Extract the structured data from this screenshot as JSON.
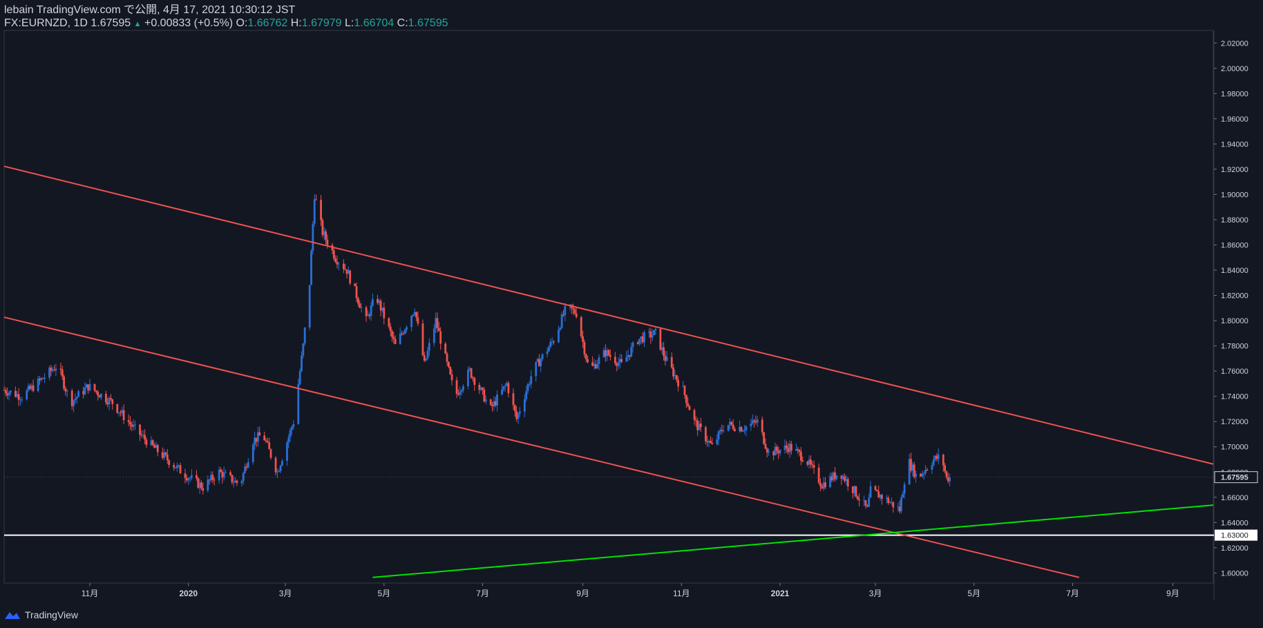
{
  "header": {
    "publish_line": "lebain TradingView.com で公開, 4月 17, 2021 10:30:12 JST",
    "symbol": "FX:EURNZD, 1D 1.67595",
    "change_arrow": "▲",
    "change": "+0.00833 (+0.5%)",
    "o_label": "O:",
    "o_value": "1.66762",
    "h_label": "H:",
    "h_value": "1.67979",
    "l_label": "L:",
    "l_value": "1.66704",
    "c_label": "C:",
    "c_value": "1.67595"
  },
  "footer": {
    "brand": "TradingView"
  },
  "colors": {
    "background": "#131722",
    "up": "#2a6fd6",
    "down": "#ef5350",
    "channel": "#ef5350",
    "support_line": "#00e600",
    "level_line": "#ffffff",
    "text_teal": "#26a69a"
  },
  "chart_data": {
    "type": "candlestick",
    "symbol": "FX:EURNZD",
    "timeframe": "1D",
    "ylim": [
      1.592,
      2.03
    ],
    "y_ticks": [
      1.6,
      1.62,
      1.64,
      1.66,
      1.68,
      1.7,
      1.72,
      1.74,
      1.76,
      1.78,
      1.8,
      1.82,
      1.84,
      1.86,
      1.88,
      1.9,
      1.92,
      1.94,
      1.96,
      1.98,
      2.0,
      2.02
    ],
    "y_tick_labels": [
      "1.60000",
      "1.62000",
      "1.64000",
      "1.66000",
      "1.68000",
      "1.70000",
      "1.72000",
      "1.74000",
      "1.76000",
      "1.78000",
      "1.80000",
      "1.82000",
      "1.84000",
      "1.86000",
      "1.88000",
      "1.90000",
      "1.92000",
      "1.94000",
      "1.96000",
      "1.98000",
      "2.00000",
      "2.02000"
    ],
    "x_range": [
      "2019-09-09",
      "2021-09-26"
    ],
    "x_ticks": [
      {
        "date": "2019-11-01",
        "label": "11月"
      },
      {
        "date": "2020-01-01",
        "label": "2020"
      },
      {
        "date": "2020-03-01",
        "label": "3月"
      },
      {
        "date": "2020-05-01",
        "label": "5月"
      },
      {
        "date": "2020-07-01",
        "label": "7月"
      },
      {
        "date": "2020-09-01",
        "label": "9月"
      },
      {
        "date": "2020-11-01",
        "label": "11月"
      },
      {
        "date": "2021-01-01",
        "label": "2021"
      },
      {
        "date": "2021-03-01",
        "label": "3月"
      },
      {
        "date": "2021-05-01",
        "label": "5月"
      },
      {
        "date": "2021-07-01",
        "label": "7月"
      },
      {
        "date": "2021-09-01",
        "label": "9月"
      }
    ],
    "last_price": 1.67595,
    "last_price_label": "1.67595",
    "horizontal_level": 1.63,
    "horizontal_level_label": "1.63000",
    "price_path_dates": [
      "2019-09-09",
      "2019-09-20",
      "2019-10-01",
      "2019-10-12",
      "2019-10-20",
      "2019-10-31",
      "2019-11-15",
      "2019-11-28",
      "2019-12-10",
      "2019-12-28",
      "2020-01-10",
      "2020-01-20",
      "2020-02-02",
      "2020-02-10",
      "2020-02-16",
      "2020-02-25",
      "2020-03-06",
      "2020-03-12",
      "2020-03-16",
      "2020-03-19",
      "2020-03-24",
      "2020-04-01",
      "2020-04-08",
      "2020-04-20",
      "2020-04-26",
      "2020-05-08",
      "2020-05-20",
      "2020-05-26",
      "2020-06-02",
      "2020-06-14",
      "2020-06-23",
      "2020-07-06",
      "2020-07-16",
      "2020-07-22",
      "2020-08-01",
      "2020-08-14",
      "2020-08-22",
      "2020-08-28",
      "2020-09-05",
      "2020-09-15",
      "2020-09-25",
      "2020-10-05",
      "2020-10-16",
      "2020-10-22",
      "2020-11-02",
      "2020-11-09",
      "2020-11-20",
      "2020-11-28",
      "2020-12-09",
      "2020-12-18",
      "2020-12-25",
      "2021-01-07",
      "2021-01-17",
      "2021-01-27",
      "2021-02-07",
      "2021-02-16",
      "2021-02-24",
      "2021-02-26",
      "2021-03-06",
      "2021-03-16",
      "2021-03-21",
      "2021-03-27",
      "2021-04-06",
      "2021-04-11",
      "2021-04-14",
      "2021-04-16"
    ],
    "price_path_values": [
      1.745,
      1.74,
      1.752,
      1.765,
      1.735,
      1.748,
      1.735,
      1.715,
      1.7,
      1.68,
      1.668,
      1.68,
      1.67,
      1.705,
      1.71,
      1.68,
      1.72,
      1.78,
      1.83,
      1.9,
      1.87,
      1.85,
      1.84,
      1.8,
      1.82,
      1.78,
      1.81,
      1.765,
      1.8,
      1.74,
      1.76,
      1.73,
      1.75,
      1.722,
      1.76,
      1.785,
      1.811,
      1.806,
      1.76,
      1.775,
      1.765,
      1.785,
      1.79,
      1.77,
      1.745,
      1.72,
      1.7,
      1.718,
      1.715,
      1.72,
      1.695,
      1.7,
      1.69,
      1.67,
      1.68,
      1.665,
      1.65,
      1.665,
      1.66,
      1.65,
      1.69,
      1.675,
      1.69,
      1.692,
      1.675,
      1.676
    ],
    "trendlines": [
      {
        "name": "channel-upper",
        "from": {
          "date": "2019-09-09",
          "price": 1.9223
        },
        "to": {
          "date": "2021-09-26",
          "price": 1.6863
        }
      },
      {
        "name": "channel-lower",
        "from": {
          "date": "2019-09-09",
          "price": 1.8027
        },
        "to": {
          "date": "2021-07-05",
          "price": 1.5965
        }
      },
      {
        "name": "support-rising",
        "from": {
          "date": "2020-04-24",
          "price": 1.5965
        },
        "to": {
          "date": "2021-09-26",
          "price": 1.6538
        }
      }
    ]
  }
}
